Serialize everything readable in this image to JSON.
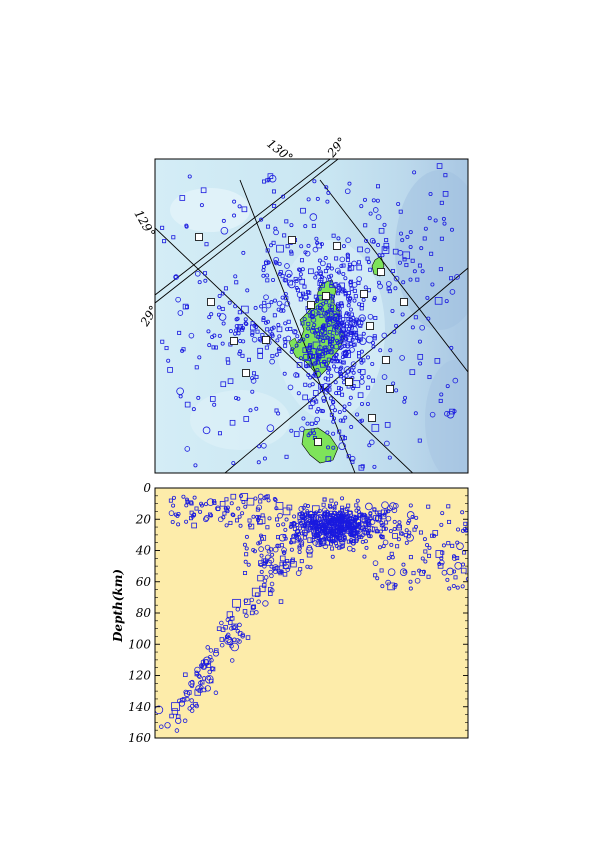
{
  "colors": {
    "map_sea_light": "#cfeaf4",
    "map_sea_deep": "#b4cfe6",
    "island_fill": "#7ee35a",
    "event_stroke": "#1a1adf",
    "station_fill": "#ffffff",
    "section_bg": "#fdecaa",
    "grid_line": "#000000"
  },
  "map": {
    "grid_labels": {
      "top_1": "130°",
      "top_2": "29°",
      "left_1": "129°",
      "left_2": "29°"
    },
    "stations_count_note": ""
  },
  "chart_data": {
    "type": "scatter",
    "title": "",
    "xlabel": "",
    "ylabel": "Depth(km)",
    "ylim": [
      0,
      160
    ],
    "y_inverted": true,
    "y_ticks": [
      0,
      20,
      40,
      60,
      80,
      100,
      120,
      140,
      160
    ],
    "x_ticks_labeled": false,
    "grid": false,
    "marker": "open circles and squares",
    "depth_clusters": [
      {
        "name": "shallow crustal swarm",
        "x_range": [
          0.45,
          0.7
        ],
        "depth_range": [
          10,
          35
        ]
      },
      {
        "name": "shallow western group",
        "x_range": [
          0.05,
          0.4
        ],
        "depth_range": [
          5,
          25
        ]
      },
      {
        "name": "dipping slab seismicity",
        "x_range": [
          0.05,
          0.45
        ],
        "depth_range": [
          40,
          150
        ]
      },
      {
        "name": "eastern group",
        "x_range": [
          0.7,
          1.0
        ],
        "depth_range": [
          10,
          65
        ]
      }
    ]
  }
}
